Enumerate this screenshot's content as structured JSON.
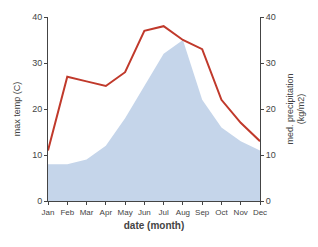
{
  "chart_data": {
    "type": "line",
    "categories": [
      "Jan",
      "Feb",
      "Mar",
      "Apr",
      "May",
      "Jun",
      "Jul",
      "Aug",
      "Sep",
      "Oct",
      "Nov",
      "Dec"
    ],
    "xlabel": "date (month)",
    "ylabel": "max temp (C)",
    "y2label": "med. precipitation\n(kg/m2)",
    "series": [
      {
        "type": "area",
        "color": "#c5d5ea",
        "axis": "y2",
        "values": [
          8,
          8,
          9,
          12,
          18,
          25,
          32,
          35,
          22,
          16,
          13,
          11
        ]
      },
      {
        "type": "line",
        "color": "#c0392b",
        "values": [
          11,
          27,
          26,
          25,
          28,
          37,
          38,
          35,
          33,
          22,
          17,
          13
        ]
      }
    ],
    "ylim": [
      0,
      40
    ],
    "yticks": [
      0,
      10,
      20,
      30,
      40
    ],
    "y2lim": [
      0,
      40
    ],
    "y2ticks": [
      0,
      10,
      20,
      30,
      40
    ],
    "grid": false
  }
}
